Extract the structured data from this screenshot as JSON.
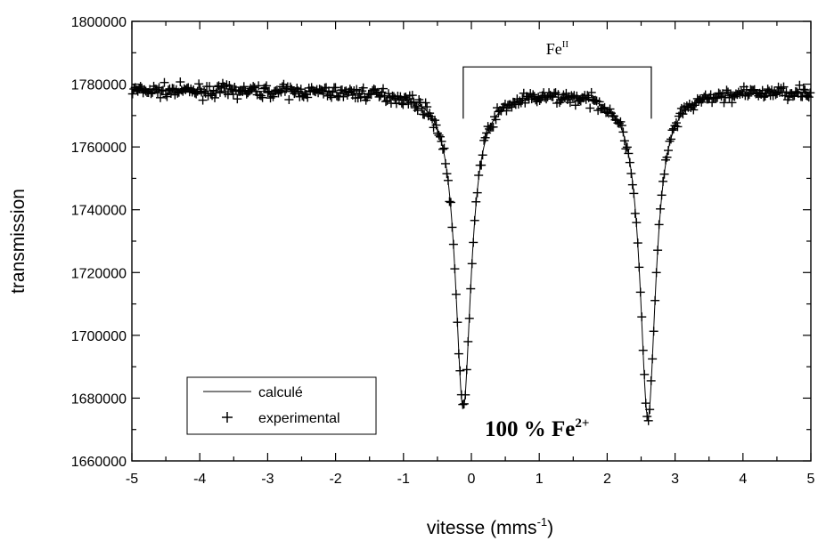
{
  "chart_data": {
    "type": "scatter",
    "xlabel": "vitesse (mms",
    "xlabel_sup": "-1",
    "xlabel_close": ")",
    "ylabel": "transmission",
    "xlim": [
      -5,
      5
    ],
    "ylim": [
      1660000,
      1800000
    ],
    "x_ticks": [
      -5,
      -4,
      -3,
      -2,
      -1,
      0,
      1,
      2,
      3,
      4,
      5
    ],
    "y_ticks": [
      1660000,
      1680000,
      1700000,
      1720000,
      1740000,
      1760000,
      1780000,
      1800000
    ],
    "legend_position": "bottom-left",
    "series": [
      {
        "name": "calculé",
        "kind": "line"
      },
      {
        "name": "experimental",
        "kind": "scatter",
        "marker": "+"
      }
    ],
    "model": {
      "baseline": 1778000,
      "peaks": [
        {
          "center": -0.12,
          "depth": 101000,
          "hwhm": 0.14
        },
        {
          "center": 2.6,
          "depth": 104000,
          "hwhm": 0.14
        }
      ]
    },
    "annotations": {
      "bracket": {
        "x_start": -0.12,
        "x_end": 2.65,
        "y_top": 1785500,
        "y_bottom": 1769000
      },
      "bracket_label": "Fe",
      "bracket_label_sup": "II",
      "main_label": "100 % Fe",
      "main_label_sup": "2+"
    }
  }
}
